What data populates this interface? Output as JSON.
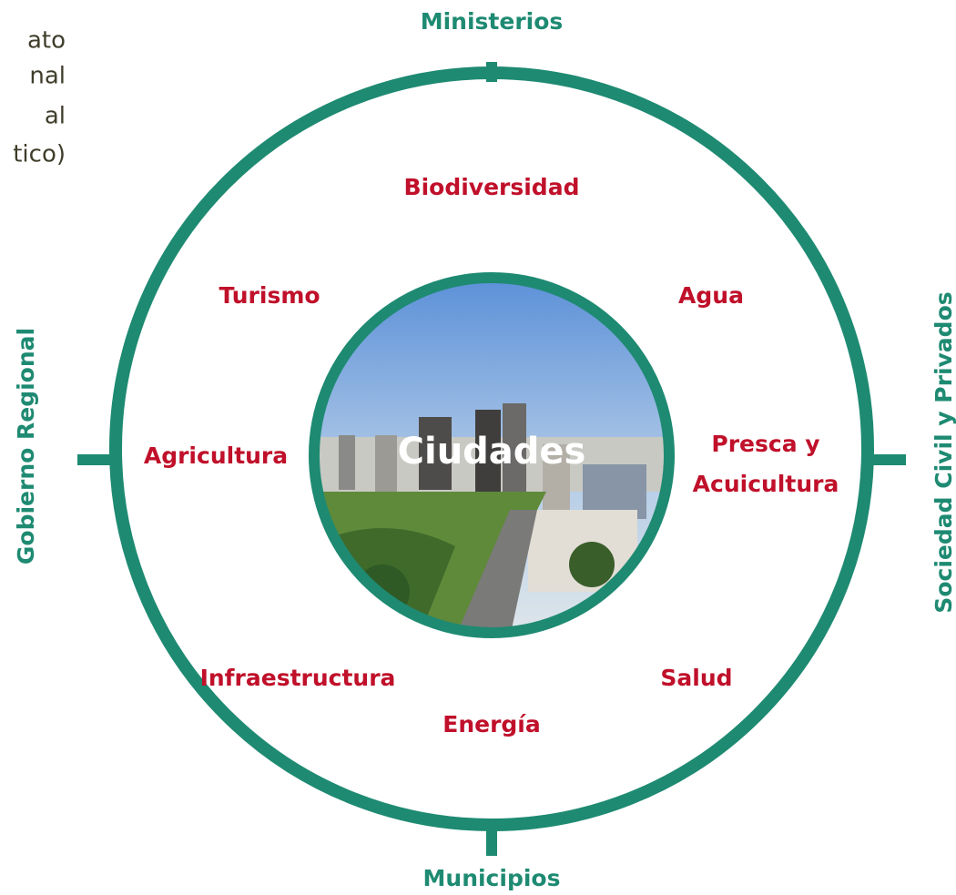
{
  "header_text": [
    "ato",
    "nal",
    "al",
    "tico)"
  ],
  "stakeholders": {
    "top": "Ministerios",
    "bottom": "Municipios",
    "left": "Gobierno Regional",
    "right": "Sociedad Civil y Privados"
  },
  "center": "Ciudades",
  "sectors": [
    "Biodiversidad",
    "Agua",
    [
      "Presca y",
      "Acuicultura"
    ],
    "Salud",
    "Energía",
    "Infraestructura",
    "Agricultura",
    "Turismo"
  ]
}
